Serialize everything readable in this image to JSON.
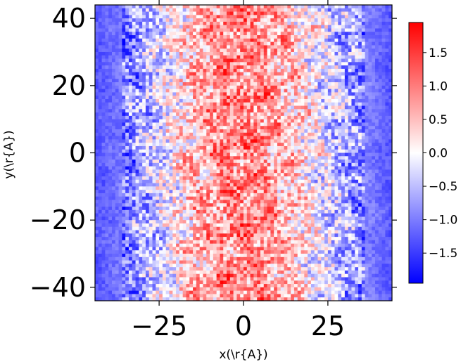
{
  "chart_data": {
    "type": "heatmap",
    "title": "",
    "xlabel": "x(\\r{A})",
    "ylabel": "y(\\r{A})",
    "xlim": [
      -44,
      44
    ],
    "ylim": [
      -44,
      44
    ],
    "x_ticks": [
      -25,
      0,
      25
    ],
    "y_ticks": [
      -40,
      -20,
      0,
      20,
      40
    ],
    "x_tick_labels": [
      "−25",
      "0",
      "25"
    ],
    "y_tick_labels": [
      "−40",
      "−20",
      "0",
      "20",
      "40"
    ],
    "colormap": "bwr",
    "color_range": [
      -1.95,
      1.95
    ],
    "colorbar_ticks": [
      1.5,
      1.0,
      0.5,
      0.0,
      -0.5,
      -1.0,
      -1.5
    ],
    "colorbar_tick_labels": [
      "1.5",
      "1.0",
      "0.5",
      "0.0",
      "−0.5",
      "−1.0",
      "−1.5"
    ],
    "grid": false,
    "field_description_values": {
      "columns": 88,
      "rows": 88,
      "mean_profile_x": [
        -44,
        -35,
        -25,
        -15,
        -5,
        5,
        15,
        25,
        35,
        44
      ],
      "mean_profile_value": [
        -1.3,
        -1.0,
        -0.3,
        0.5,
        0.9,
        0.9,
        0.4,
        -0.3,
        -0.9,
        -1.3
      ]
    }
  }
}
